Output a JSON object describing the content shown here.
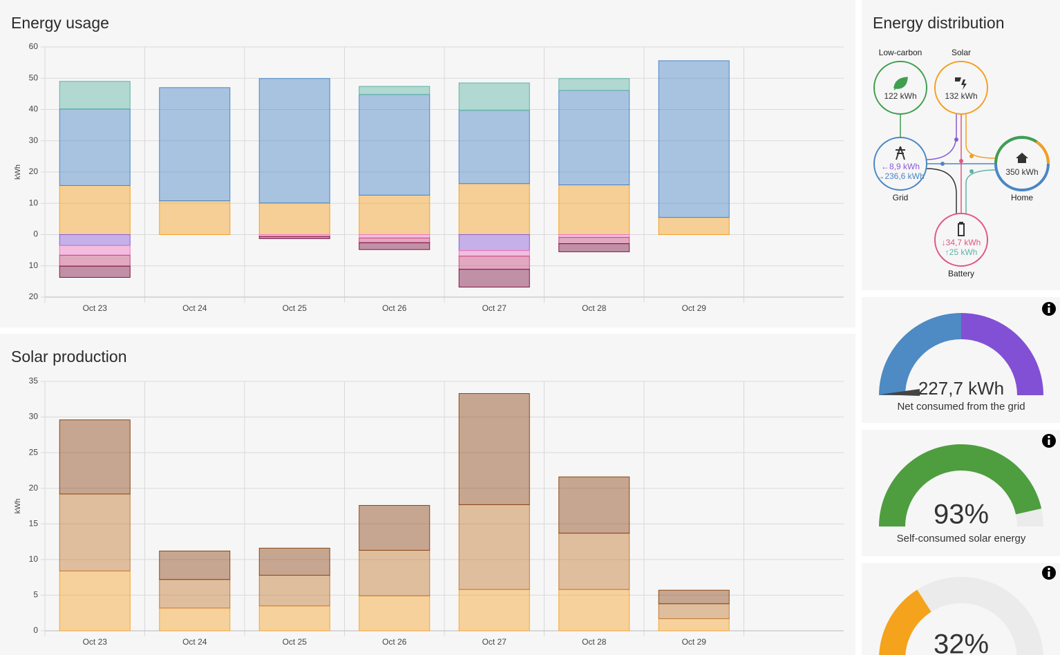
{
  "chart_data": [
    {
      "type": "bar",
      "title": "Energy usage",
      "y_label": "kWh",
      "stacked": true,
      "grid": true,
      "categories": [
        "Oct 23",
        "Oct 24",
        "Oct 25",
        "Oct 26",
        "Oct 27",
        "Oct 28",
        "Oct 29",
        null
      ],
      "series": [
        {
          "color": "#f59f1f",
          "values": [
            15.7,
            10.8,
            10.1,
            12.6,
            16.3,
            15.9,
            5.5,
            null
          ]
        },
        {
          "color": "#4a86c5",
          "values": [
            24.5,
            36.2,
            39.8,
            32.2,
            23.4,
            30.2,
            50.1,
            null
          ]
        },
        {
          "color": "#5db3a5",
          "values": [
            8.8,
            0,
            0,
            2.6,
            8.8,
            3.8,
            0,
            null
          ]
        },
        {
          "color": "#8a5ad8",
          "values": [
            -3.5,
            0,
            0,
            0,
            -5.1,
            0,
            0,
            null
          ]
        },
        {
          "color": "#ee78c2",
          "values": [
            -3.1,
            0,
            -0.6,
            -1.1,
            -1.8,
            -0.9,
            0,
            null
          ]
        },
        {
          "color": "#c9497f",
          "values": [
            -3.5,
            0,
            0,
            -1.5,
            -4.2,
            -2.0,
            0,
            null
          ]
        },
        {
          "color": "#7f1544",
          "values": [
            -3.6,
            0,
            -0.7,
            -2.2,
            -5.7,
            -2.6,
            0,
            null
          ]
        }
      ],
      "ylim": [
        -20,
        60
      ],
      "yticks": [
        {
          "value": -20,
          "label": "20"
        },
        {
          "value": -10,
          "label": "10"
        },
        0,
        10,
        20,
        30,
        40,
        50,
        60
      ]
    },
    {
      "type": "bar",
      "title": "Solar production",
      "y_label": "kWh",
      "stacked": true,
      "grid": true,
      "categories": [
        "Oct 23",
        "Oct 24",
        "Oct 25",
        "Oct 26",
        "Oct 27",
        "Oct 28",
        "Oct 29",
        null
      ],
      "series": [
        {
          "color": "#f7a42c",
          "values": [
            8.4,
            3.2,
            3.5,
            4.9,
            5.8,
            5.8,
            1.7,
            null
          ]
        },
        {
          "color": "#c47a32",
          "values": [
            10.8,
            4.0,
            4.3,
            6.4,
            11.9,
            7.9,
            2.1,
            null
          ]
        },
        {
          "color": "#8b4513",
          "values": [
            10.4,
            4.0,
            3.8,
            6.3,
            15.6,
            7.9,
            1.9,
            null
          ]
        }
      ],
      "ylim": [
        0,
        35
      ],
      "yticks": [
        0,
        5,
        10,
        15,
        20,
        25,
        30,
        35
      ]
    }
  ],
  "energy_distribution": {
    "title": "Energy distribution",
    "low_carbon": {
      "label": "Low-carbon",
      "value": "122 kWh"
    },
    "solar": {
      "label": "Solar",
      "value": "132 kWh"
    },
    "grid": {
      "label": "Grid",
      "in": "←8,9 kWh",
      "out": "→236,6 kWh"
    },
    "home": {
      "label": "Home",
      "value": "350 kWh"
    },
    "battery": {
      "label": "Battery",
      "in": "↓34,7 kWh",
      "out": "↑25 kWh"
    }
  },
  "gauges": [
    {
      "value_label": "227,7 kWh",
      "label": "Net consumed from the grid"
    },
    {
      "value": 93,
      "value_label": "93%",
      "label": "Self-consumed solar energy",
      "color": "#4e9e3f"
    },
    {
      "value": 32,
      "value_label": "32%",
      "color": "#f5a31c"
    }
  ]
}
